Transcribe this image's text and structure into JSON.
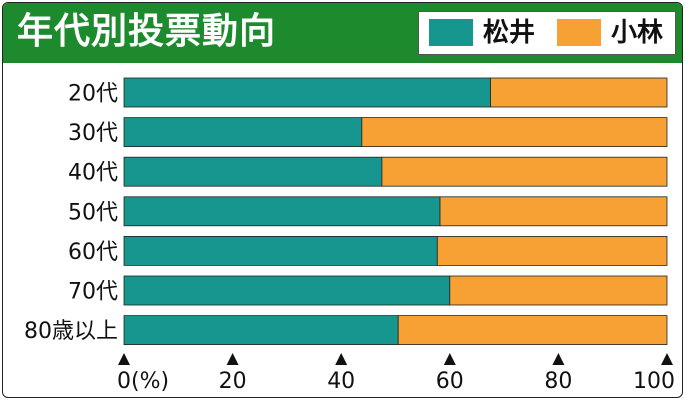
{
  "title": "年代別投票動向",
  "legend": [
    {
      "name": "松井",
      "color": "#16968f"
    },
    {
      "name": "小林",
      "color": "#f7a033"
    }
  ],
  "chart_data": {
    "type": "bar",
    "orientation": "horizontal",
    "stacked": true,
    "title": "年代別投票動向",
    "categories": [
      "20代",
      "30代",
      "40代",
      "50代",
      "60代",
      "70代",
      "80歳以上"
    ],
    "series": [
      {
        "name": "松井",
        "values": [
          67.5,
          43.8,
          47.5,
          58.2,
          57.7,
          60.0,
          50.5
        ],
        "color": "#16968f"
      },
      {
        "name": "小林",
        "values": [
          32.5,
          56.2,
          52.5,
          41.8,
          42.3,
          40.0,
          49.5
        ],
        "color": "#f7a033"
      }
    ],
    "xlim": [
      0,
      100
    ],
    "x_ticks": [
      0,
      20,
      40,
      60,
      80,
      100
    ],
    "x_tick_labels": [
      "0(%)",
      "20",
      "40",
      "60",
      "80",
      "100"
    ],
    "grid": false,
    "legend_position": "top-right"
  }
}
